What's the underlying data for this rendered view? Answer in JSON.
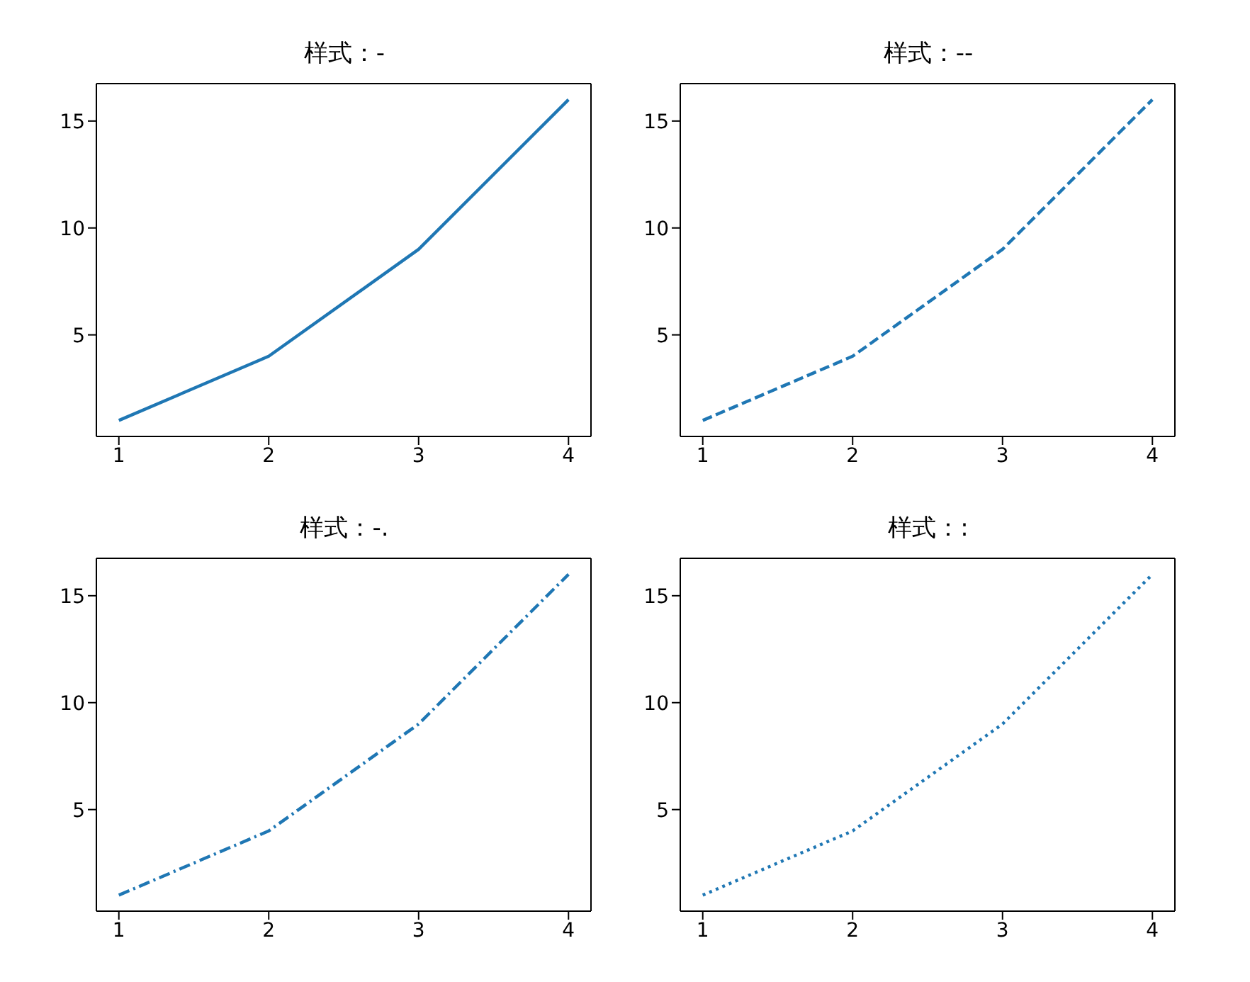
{
  "chart_data": [
    {
      "type": "line",
      "title": "样式：-",
      "x": [
        1,
        2,
        3,
        4
      ],
      "values": [
        1,
        4,
        9,
        16
      ],
      "color": "#1f77b4",
      "line_style": "solid",
      "xlim": [
        0.85,
        4.15
      ],
      "ylim": [
        0.25,
        16.75
      ],
      "xticks": [
        1,
        2,
        3,
        4
      ],
      "yticks": [
        5,
        10,
        15
      ],
      "grid": false,
      "legend": false
    },
    {
      "type": "line",
      "title": "样式：--",
      "x": [
        1,
        2,
        3,
        4
      ],
      "values": [
        1,
        4,
        9,
        16
      ],
      "color": "#1f77b4",
      "line_style": "dashed",
      "xlim": [
        0.85,
        4.15
      ],
      "ylim": [
        0.25,
        16.75
      ],
      "xticks": [
        1,
        2,
        3,
        4
      ],
      "yticks": [
        5,
        10,
        15
      ],
      "grid": false,
      "legend": false
    },
    {
      "type": "line",
      "title": "样式：-.",
      "x": [
        1,
        2,
        3,
        4
      ],
      "values": [
        1,
        4,
        9,
        16
      ],
      "color": "#1f77b4",
      "line_style": "dashdot",
      "xlim": [
        0.85,
        4.15
      ],
      "ylim": [
        0.25,
        16.75
      ],
      "xticks": [
        1,
        2,
        3,
        4
      ],
      "yticks": [
        5,
        10,
        15
      ],
      "grid": false,
      "legend": false
    },
    {
      "type": "line",
      "title": "样式：:",
      "x": [
        1,
        2,
        3,
        4
      ],
      "values": [
        1,
        4,
        9,
        16
      ],
      "color": "#1f77b4",
      "line_style": "dotted",
      "xlim": [
        0.85,
        4.15
      ],
      "ylim": [
        0.25,
        16.75
      ],
      "xticks": [
        1,
        2,
        3,
        4
      ],
      "yticks": [
        5,
        10,
        15
      ],
      "grid": false,
      "legend": false
    }
  ]
}
